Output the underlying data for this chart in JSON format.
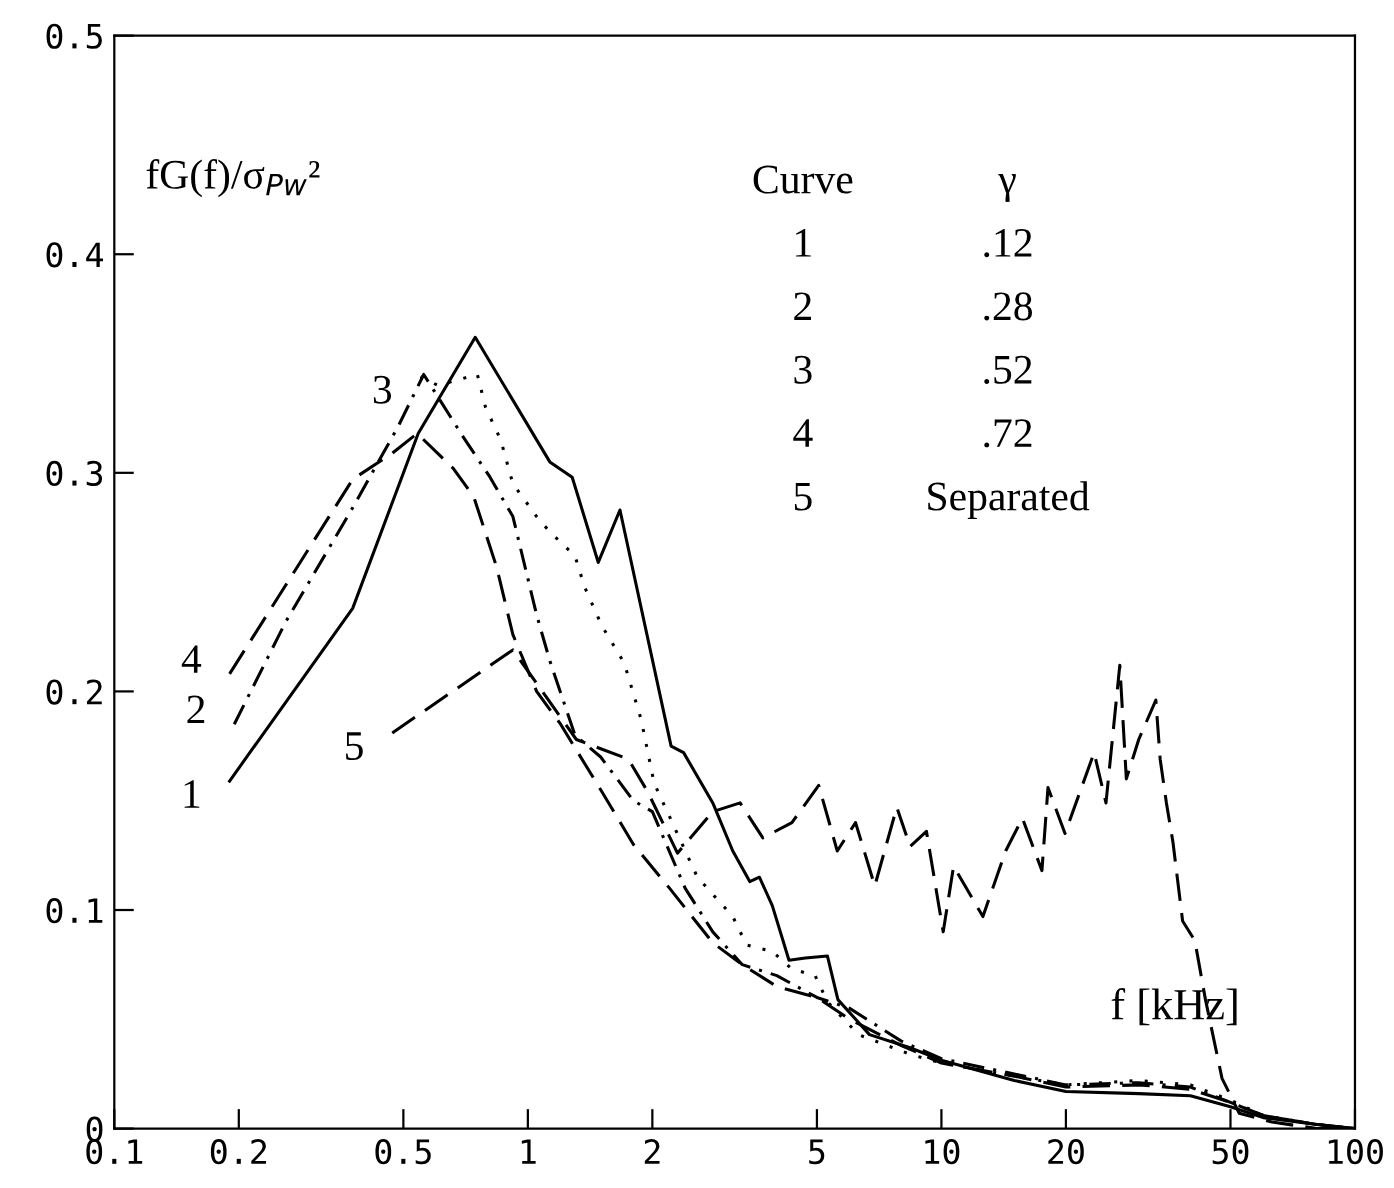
{
  "chart_data": {
    "type": "line",
    "xlabel": "f [kHz]",
    "ylabel": "fG(f)/σ$_{Pw}$²",
    "log": "x",
    "xlim": [
      0.1,
      100
    ],
    "xticks": [
      0.1,
      0.2,
      0.5,
      1,
      2,
      5,
      10,
      20,
      50,
      100
    ],
    "ylim": [
      0,
      0.5
    ],
    "yticks": [
      0,
      0.1,
      0.2,
      0.3,
      0.4,
      0.5
    ],
    "grid": false,
    "legend": false,
    "marker": "none",
    "annotations": [
      "Curve",
      "γ",
      "1",
      ".12",
      "2",
      ".28",
      "3",
      ".52",
      "4",
      ".72",
      "5",
      "Separated"
    ],
    "series": [
      {
        "name": "1",
        "color": "#000000",
        "line_style": "solid",
        "x": [
          0.19,
          0.377,
          0.543,
          0.746,
          1.13,
          1.28,
          1.48,
          1.67,
          2.22,
          2.38,
          2.8,
          3.13,
          3.44,
          3.63,
          3.9,
          4.28,
          4.69,
          5.3,
          5.62,
          6.7,
          8.4,
          10.1,
          15,
          20,
          30,
          40,
          50,
          60,
          80,
          100
        ],
        "values": [
          0.159,
          0.238,
          0.318,
          0.362,
          0.305,
          0.298,
          0.259,
          0.283,
          0.175,
          0.172,
          0.149,
          0.127,
          0.113,
          0.115,
          0.102,
          0.077,
          0.078,
          0.079,
          0.059,
          0.043,
          0.037,
          0.031,
          0.022,
          0.017,
          0.016,
          0.015,
          0.01,
          0.005,
          0.002,
          0.0
        ]
      },
      {
        "name": "2",
        "color": "#000000",
        "line_style": "dashdot",
        "x": [
          0.195,
          0.26,
          0.377,
          0.485,
          0.56,
          0.7,
          0.81,
          0.92,
          1.05,
          1.13,
          1.3,
          1.5,
          1.8,
          2.0,
          2.4,
          2.8,
          3.3,
          4,
          5,
          6,
          8,
          10,
          15,
          20,
          30,
          40,
          50,
          60,
          80,
          100
        ],
        "values": [
          0.185,
          0.232,
          0.284,
          0.321,
          0.345,
          0.316,
          0.298,
          0.28,
          0.235,
          0.214,
          0.18,
          0.17,
          0.15,
          0.145,
          0.11,
          0.09,
          0.075,
          0.07,
          0.06,
          0.055,
          0.04,
          0.032,
          0.025,
          0.02,
          0.021,
          0.019,
          0.012,
          0.006,
          0.002,
          0.0
        ]
      },
      {
        "name": "3",
        "color": "#000000",
        "line_style": "dotted",
        "x": [
          0.55,
          0.606,
          0.755,
          0.79,
          0.86,
          0.92,
          1.05,
          1.13,
          1.3,
          1.37,
          1.51,
          1.71,
          1.88,
          2.02,
          2.57,
          3.13,
          3.38,
          3.9,
          4.35,
          4.95,
          5.3,
          6.3,
          8.4,
          10,
          15,
          20,
          30,
          40,
          50,
          60,
          80,
          100
        ],
        "values": [
          0.344,
          0.34,
          0.345,
          0.33,
          0.315,
          0.295,
          0.28,
          0.273,
          0.262,
          0.248,
          0.23,
          0.213,
          0.187,
          0.158,
          0.115,
          0.097,
          0.084,
          0.081,
          0.073,
          0.07,
          0.058,
          0.043,
          0.034,
          0.03,
          0.024,
          0.02,
          0.022,
          0.02,
          0.013,
          0.006,
          0.002,
          0.0
        ]
      },
      {
        "name": "4",
        "color": "#000000",
        "line_style": "dashed",
        "x": [
          0.19,
          0.377,
          0.47,
          0.54,
          0.66,
          0.74,
          0.84,
          0.92,
          1.05,
          1.2,
          1.5,
          1.8,
          2.2,
          2.8,
          3.3,
          4,
          5,
          6,
          8,
          10,
          15,
          20,
          30,
          40,
          50,
          60,
          80,
          100
        ],
        "values": [
          0.208,
          0.297,
          0.309,
          0.318,
          0.302,
          0.289,
          0.257,
          0.226,
          0.2,
          0.185,
          0.155,
          0.13,
          0.11,
          0.085,
          0.075,
          0.065,
          0.06,
          0.05,
          0.038,
          0.03,
          0.024,
          0.019,
          0.02,
          0.018,
          0.012,
          0.006,
          0.002,
          0.0
        ]
      },
      {
        "name": "5",
        "color": "#000000",
        "line_style": "dashed",
        "x": [
          0.47,
          0.92,
          1.31,
          1.75,
          1.95,
          2.3,
          2.8,
          3.26,
          3.7,
          4.35,
          5.05,
          5.6,
          6.2,
          6.9,
          7.8,
          8.4,
          9.2,
          10.1,
          10.7,
          12.6,
          14.3,
          15.7,
          17.5,
          18.1,
          19.9,
          23.4,
          25,
          27,
          28,
          30,
          33,
          33.8,
          35,
          36.3,
          38.3,
          41,
          43.5,
          47.7,
          52.5,
          63,
          81,
          100
        ],
        "values": [
          0.181,
          0.219,
          0.178,
          0.169,
          0.154,
          0.126,
          0.145,
          0.149,
          0.133,
          0.14,
          0.157,
          0.127,
          0.14,
          0.111,
          0.147,
          0.129,
          0.136,
          0.09,
          0.12,
          0.097,
          0.127,
          0.142,
          0.118,
          0.156,
          0.135,
          0.172,
          0.149,
          0.212,
          0.16,
          0.178,
          0.196,
          0.169,
          0.149,
          0.131,
          0.095,
          0.086,
          0.059,
          0.023,
          0.007,
          0.003,
          0.0,
          0.0
        ]
      }
    ]
  }
}
